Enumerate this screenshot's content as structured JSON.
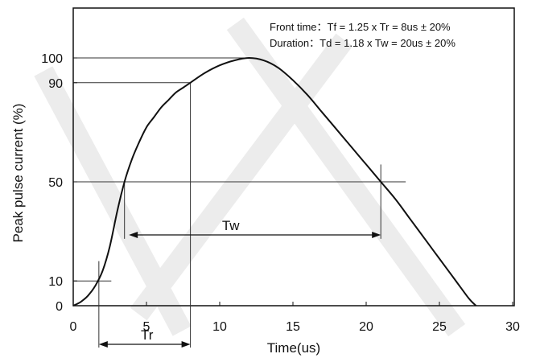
{
  "chart_data": {
    "type": "line",
    "xlabel": "Time(us)",
    "ylabel": "Peak pulse current (%)",
    "xlim": [
      0,
      30
    ],
    "ylim": [
      0,
      110
    ],
    "x_ticks": [
      "0",
      "5",
      "10",
      "15",
      "20",
      "25",
      "30"
    ],
    "x_tick_values": [
      0,
      5,
      10,
      15,
      20,
      25,
      30
    ],
    "y_ticks": [
      "0",
      "10",
      "50",
      "90",
      "100"
    ],
    "y_tick_values": [
      0,
      10,
      50,
      90,
      100
    ],
    "grid": false,
    "series": [
      {
        "x": [
          0,
          0.5,
          1,
          1.5,
          2,
          2.5,
          3,
          3.5,
          4,
          4.5,
          5,
          5.5,
          6,
          6.5,
          7,
          7.5,
          8,
          9,
          10,
          11,
          12,
          13,
          14,
          15,
          16,
          17,
          18,
          19,
          20,
          21,
          22,
          23,
          24,
          25,
          26,
          27,
          27.5
        ],
        "y": [
          0,
          1.5,
          4,
          8,
          14,
          24,
          38,
          50,
          59,
          66,
          72,
          76,
          80,
          83,
          86,
          88,
          90,
          94,
          97,
          99,
          100,
          99,
          96,
          91,
          85,
          78,
          71,
          64,
          57,
          50,
          43,
          35,
          27,
          19,
          11,
          3,
          0
        ]
      }
    ],
    "annotations": {
      "front_time": "Front time：Tf = 1.25 x Tr = 8us ± 20%",
      "duration": "Duration：Td = 1.18 x Tw = 20us ± 20%",
      "tr_label": "Tr",
      "tw_label": "Tw",
      "tr_span": [
        1.75,
        8
      ],
      "tw_span": [
        3.8,
        21
      ],
      "x10": 1.75,
      "x50_rise": 3.5,
      "x90": 8,
      "x100": 12,
      "x50_fall": 21
    }
  }
}
